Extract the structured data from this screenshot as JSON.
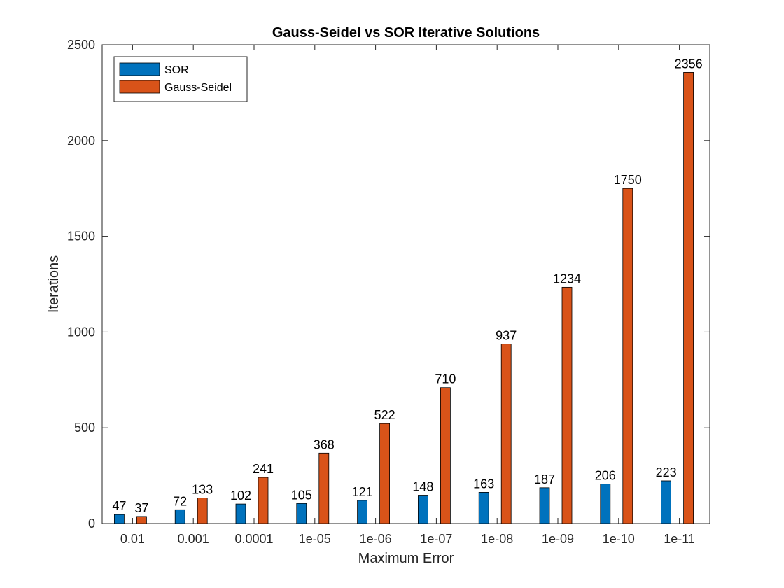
{
  "chart_data": {
    "type": "bar",
    "title": "Gauss-Seidel vs SOR Iterative Solutions",
    "xlabel": "Maximum Error",
    "ylabel": "Iterations",
    "categories": [
      "0.01",
      "0.001",
      "0.0001",
      "1e-05",
      "1e-06",
      "1e-07",
      "1e-08",
      "1e-09",
      "1e-10",
      "1e-11"
    ],
    "series": [
      {
        "name": "SOR",
        "color": "#0072BD",
        "values": [
          47,
          72,
          102,
          105,
          121,
          148,
          163,
          187,
          206,
          223
        ]
      },
      {
        "name": "Gauss-Seidel",
        "color": "#D95319",
        "values": [
          37,
          133,
          241,
          368,
          522,
          710,
          937,
          1234,
          1750,
          2356
        ]
      }
    ],
    "ylim": [
      0,
      2500
    ],
    "yticks": [
      0,
      500,
      1000,
      1500,
      2000,
      2500
    ],
    "grid": false,
    "legend": "top-left"
  }
}
